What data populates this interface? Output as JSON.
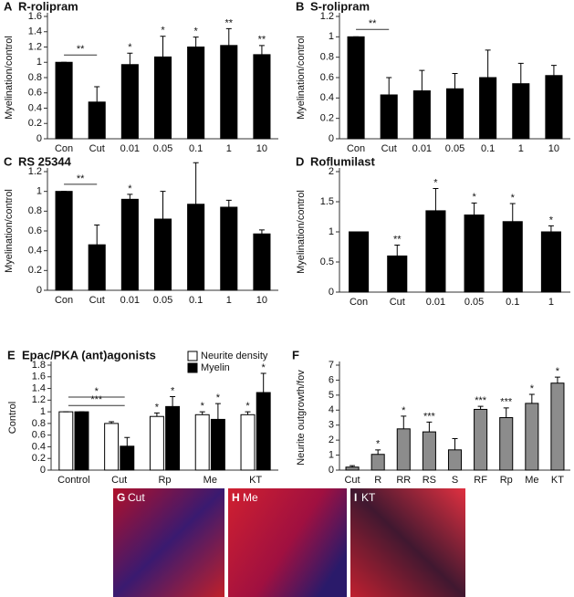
{
  "chart_data": [
    {
      "type": "bar",
      "label": "A",
      "title": "R-rolipram",
      "ylabel": "Myelination/control",
      "categories": [
        "Con",
        "Cut",
        "0.01",
        "0.05",
        "0.1",
        "1",
        "10"
      ],
      "values": [
        1.0,
        0.48,
        0.97,
        1.07,
        1.2,
        1.22,
        1.1
      ],
      "errors": [
        0,
        0.2,
        0.15,
        0.27,
        0.13,
        0.22,
        0.12
      ],
      "stars": [
        null,
        null,
        "*",
        "*",
        "*",
        "**",
        "**"
      ],
      "color": "#000000",
      "brackets": [
        {
          "from": "Con",
          "to": "Cut",
          "label": "**"
        }
      ],
      "ylim": [
        0,
        1.6
      ],
      "yticks": [
        0,
        0.2,
        0.4,
        0.6,
        0.8,
        1,
        1.2,
        1.4,
        1.6
      ]
    },
    {
      "type": "bar",
      "label": "B",
      "title": "S-rolipram",
      "ylabel": "Myelination/control",
      "categories": [
        "Con",
        "Cut",
        "0.01",
        "0.05",
        "0.1",
        "1",
        "10"
      ],
      "values": [
        1.0,
        0.43,
        0.47,
        0.49,
        0.6,
        0.54,
        0.62
      ],
      "errors": [
        0,
        0.17,
        0.2,
        0.15,
        0.27,
        0.2,
        0.1
      ],
      "color": "#000000",
      "brackets": [
        {
          "from": "Con",
          "to": "Cut",
          "label": "**"
        }
      ],
      "ylim": [
        0,
        1.2
      ],
      "yticks": [
        0,
        0.2,
        0.4,
        0.6,
        0.8,
        1,
        1.2
      ]
    },
    {
      "type": "bar",
      "label": "C",
      "title": "RS 25344",
      "ylabel": "Myelination/control",
      "categories": [
        "Con",
        "Cut",
        "0.01",
        "0.05",
        "0.1",
        "1",
        "10"
      ],
      "values": [
        1.0,
        0.46,
        0.92,
        0.72,
        0.87,
        0.84,
        0.57
      ],
      "errors": [
        0,
        0.2,
        0.05,
        0.28,
        0.42,
        0.07,
        0.04
      ],
      "stars": [
        null,
        null,
        "*",
        null,
        null,
        null,
        null
      ],
      "color": "#000000",
      "brackets": [
        {
          "from": "Con",
          "to": "Cut",
          "label": "**"
        }
      ],
      "ylim": [
        0,
        1.2
      ],
      "yticks": [
        0,
        0.2,
        0.4,
        0.6,
        0.8,
        1,
        1.2
      ]
    },
    {
      "type": "bar",
      "label": "D",
      "title": "Roflumilast",
      "ylabel": "Myelination/control",
      "categories": [
        "Con",
        "Cut",
        "0.01",
        "0.05",
        "0.1",
        "1"
      ],
      "values": [
        1.0,
        0.6,
        1.35,
        1.28,
        1.17,
        1.0
      ],
      "errors": [
        0,
        0.18,
        0.37,
        0.2,
        0.3,
        0.1
      ],
      "stars": [
        null,
        "**",
        "*",
        "*",
        "*",
        "*"
      ],
      "color": "#000000",
      "ylim": [
        0,
        2
      ],
      "yticks": [
        0,
        0.5,
        1,
        1.5,
        2
      ]
    },
    {
      "type": "bar",
      "label": "E",
      "title": "Epac/PKA (ant)agonists",
      "ylabel": "Control",
      "categories": [
        "Control",
        "Cut",
        "Rp",
        "Me",
        "KT"
      ],
      "series": [
        {
          "name": "Neurite density",
          "color": "#ffffff",
          "values": [
            1.0,
            0.8,
            0.92,
            0.95,
            0.95
          ],
          "errors": [
            0,
            0.03,
            0.06,
            0.05,
            0.05
          ],
          "stars": [
            null,
            null,
            "*",
            "*",
            "*"
          ]
        },
        {
          "name": "Myelin",
          "color": "#000000",
          "values": [
            1.0,
            0.41,
            1.09,
            0.87,
            1.33
          ],
          "errors": [
            0,
            0.15,
            0.17,
            0.27,
            0.33
          ],
          "stars": [
            null,
            null,
            "*",
            "*",
            "*"
          ]
        }
      ],
      "brackets": [
        {
          "from": "Control",
          "to": "Cut",
          "label": "*"
        },
        {
          "from": "Control",
          "to": "Cut",
          "label": "***"
        }
      ],
      "ylim": [
        0,
        1.8
      ],
      "yticks": [
        0,
        0.2,
        0.4,
        0.6,
        0.8,
        1,
        1.2,
        1.4,
        1.6,
        1.8
      ]
    },
    {
      "type": "bar",
      "label": "F",
      "ylabel": "Neurite outgrowth/fov",
      "categories": [
        "Cut",
        "R",
        "RR",
        "RS",
        "S",
        "RF",
        "Rp",
        "Me",
        "KT"
      ],
      "values": [
        0.2,
        1.05,
        2.75,
        2.55,
        1.35,
        4.05,
        3.5,
        4.45,
        5.8
      ],
      "errors": [
        0.1,
        0.3,
        0.85,
        0.65,
        0.75,
        0.2,
        0.65,
        0.6,
        0.4
      ],
      "stars": [
        null,
        "*",
        "*",
        "***",
        null,
        "***",
        "***",
        "*",
        "*"
      ],
      "color": "#8c8c8c",
      "ylim": [
        0,
        7
      ],
      "yticks": [
        0,
        1,
        2,
        3,
        4,
        5,
        6,
        7
      ]
    }
  ],
  "images": [
    {
      "letter": "G",
      "label": "Cut"
    },
    {
      "letter": "H",
      "label": "Me"
    },
    {
      "letter": "I",
      "label": "KT"
    }
  ]
}
